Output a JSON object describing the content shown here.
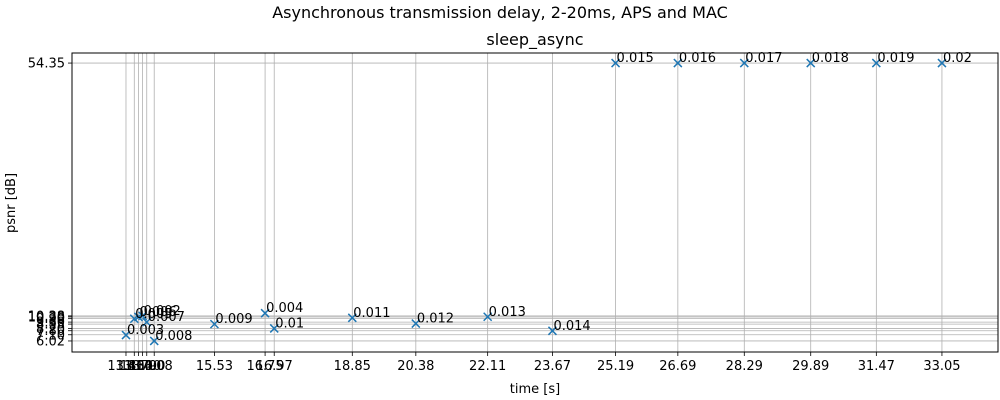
{
  "figure": {
    "suptitle": "Asynchronous transmission delay, 2-20ms, APS and MAC"
  },
  "chart_data": {
    "type": "scatter",
    "title": "sleep_async",
    "xlabel": "time [s]",
    "ylabel": "psnr [dB]",
    "marker": "x",
    "marker_color": "#1f77b4",
    "grid": true,
    "xlim": [
      12.1,
      34.4
    ],
    "ylim": [
      4.1,
      56.1
    ],
    "x_ticks": [
      {
        "value": 13.4,
        "label": "13.40"
      },
      {
        "value": 13.6,
        "label": "13.60"
      },
      {
        "value": 13.7,
        "label": "13.70"
      },
      {
        "value": 13.8,
        "label": "13.80"
      },
      {
        "value": 13.9,
        "label": "13.90"
      },
      {
        "value": 14.08,
        "label": "14.08"
      },
      {
        "value": 15.53,
        "label": "15.53"
      },
      {
        "value": 16.75,
        "label": "16.75"
      },
      {
        "value": 16.97,
        "label": "16.97"
      },
      {
        "value": 18.85,
        "label": "18.85"
      },
      {
        "value": 20.38,
        "label": "20.38"
      },
      {
        "value": 22.11,
        "label": "22.11"
      },
      {
        "value": 23.67,
        "label": "23.67"
      },
      {
        "value": 25.19,
        "label": "25.19"
      },
      {
        "value": 26.69,
        "label": "26.69"
      },
      {
        "value": 28.29,
        "label": "28.29"
      },
      {
        "value": 29.89,
        "label": "29.89"
      },
      {
        "value": 31.47,
        "label": "31.47"
      },
      {
        "value": 33.05,
        "label": "33.05"
      }
    ],
    "y_ticks": [
      {
        "value": 54.35,
        "label": "54.35"
      },
      {
        "value": 10.38,
        "label": "10.38"
      },
      {
        "value": 10.2,
        "label": "10.20"
      },
      {
        "value": 9.9,
        "label": "9.90"
      },
      {
        "value": 9.3,
        "label": "9.30"
      },
      {
        "value": 8.95,
        "label": "8.95"
      },
      {
        "value": 8.2,
        "label": "8.20"
      },
      {
        "value": 7.8,
        "label": "7.80"
      },
      {
        "value": 7.1,
        "label": "7.10"
      },
      {
        "value": 6.02,
        "label": "6.02"
      }
    ],
    "points": [
      {
        "x": 13.4,
        "y": 7.05,
        "label": "0.003"
      },
      {
        "x": 13.6,
        "y": 9.88,
        "label": "0.005"
      },
      {
        "x": 13.7,
        "y": 10.2,
        "label": "0.006"
      },
      {
        "x": 13.8,
        "y": 10.38,
        "label": "0.002"
      },
      {
        "x": 13.9,
        "y": 9.3,
        "label": "0.007"
      },
      {
        "x": 14.08,
        "y": 6.02,
        "label": "0.008"
      },
      {
        "x": 15.53,
        "y": 8.95,
        "label": "0.009"
      },
      {
        "x": 16.75,
        "y": 10.85,
        "label": "0.004"
      },
      {
        "x": 16.97,
        "y": 8.2,
        "label": "0.01"
      },
      {
        "x": 18.85,
        "y": 10.05,
        "label": "0.011"
      },
      {
        "x": 20.38,
        "y": 9.05,
        "label": "0.012"
      },
      {
        "x": 22.11,
        "y": 10.23,
        "label": "0.013"
      },
      {
        "x": 23.67,
        "y": 7.78,
        "label": "0.014"
      },
      {
        "x": 25.19,
        "y": 54.35,
        "label": "0.015"
      },
      {
        "x": 26.69,
        "y": 54.35,
        "label": "0.016"
      },
      {
        "x": 28.29,
        "y": 54.35,
        "label": "0.017"
      },
      {
        "x": 29.89,
        "y": 54.35,
        "label": "0.018"
      },
      {
        "x": 31.47,
        "y": 54.35,
        "label": "0.019"
      },
      {
        "x": 33.05,
        "y": 54.35,
        "label": "0.02"
      }
    ]
  }
}
